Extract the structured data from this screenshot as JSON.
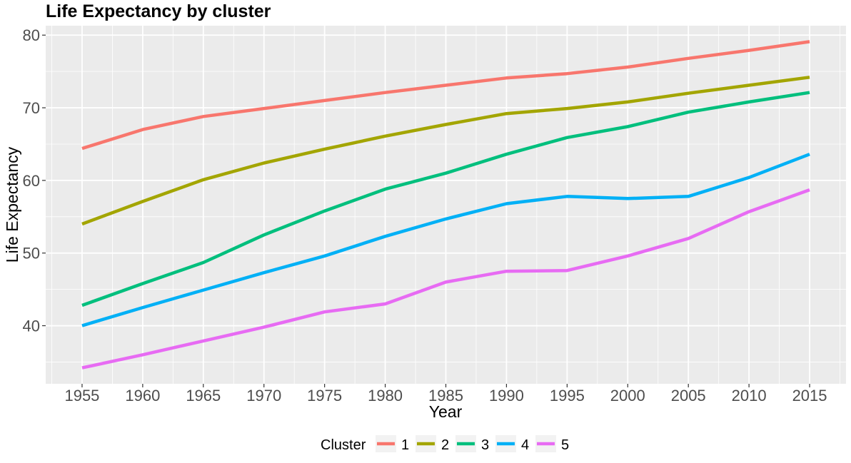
{
  "chart_data": {
    "type": "line",
    "title": "Life Expectancy by cluster",
    "xlabel": "Year",
    "ylabel": "Life Expectancy",
    "x": [
      1955,
      1960,
      1965,
      1970,
      1975,
      1980,
      1985,
      1990,
      1995,
      2000,
      2005,
      2010,
      2015
    ],
    "xlim": [
      1952,
      2018
    ],
    "ylim": [
      32,
      81.3
    ],
    "x_ticks": [
      "1955",
      "1960",
      "1965",
      "1970",
      "1975",
      "1980",
      "1985",
      "1990",
      "1995",
      "2000",
      "2005",
      "2010",
      "2015"
    ],
    "y_ticks": [
      "40",
      "50",
      "60",
      "70",
      "80"
    ],
    "grid": true,
    "legend": {
      "title": "Cluster",
      "position": "bottom"
    },
    "series": [
      {
        "name": "1",
        "color": "#F8766D",
        "values": [
          64.4,
          67.0,
          68.8,
          69.9,
          71.0,
          72.1,
          73.1,
          74.1,
          74.7,
          75.6,
          76.8,
          77.9,
          79.1
        ]
      },
      {
        "name": "2",
        "color": "#A3A500",
        "values": [
          54.0,
          57.1,
          60.1,
          62.4,
          64.3,
          66.1,
          67.7,
          69.2,
          69.9,
          70.8,
          72.0,
          73.1,
          74.2
        ]
      },
      {
        "name": "3",
        "color": "#00BF7D",
        "values": [
          42.8,
          45.8,
          48.7,
          52.5,
          55.8,
          58.8,
          61.0,
          63.6,
          65.9,
          67.4,
          69.4,
          70.8,
          72.1
        ]
      },
      {
        "name": "4",
        "color": "#00B0F6",
        "values": [
          40.0,
          42.5,
          44.9,
          47.3,
          49.6,
          52.3,
          54.7,
          56.8,
          57.8,
          57.5,
          57.8,
          60.4,
          63.6
        ]
      },
      {
        "name": "5",
        "color": "#E76BF3",
        "values": [
          34.2,
          36.0,
          37.9,
          39.8,
          41.9,
          43.0,
          46.0,
          47.5,
          47.6,
          49.6,
          52.0,
          55.7,
          58.7
        ]
      }
    ]
  }
}
